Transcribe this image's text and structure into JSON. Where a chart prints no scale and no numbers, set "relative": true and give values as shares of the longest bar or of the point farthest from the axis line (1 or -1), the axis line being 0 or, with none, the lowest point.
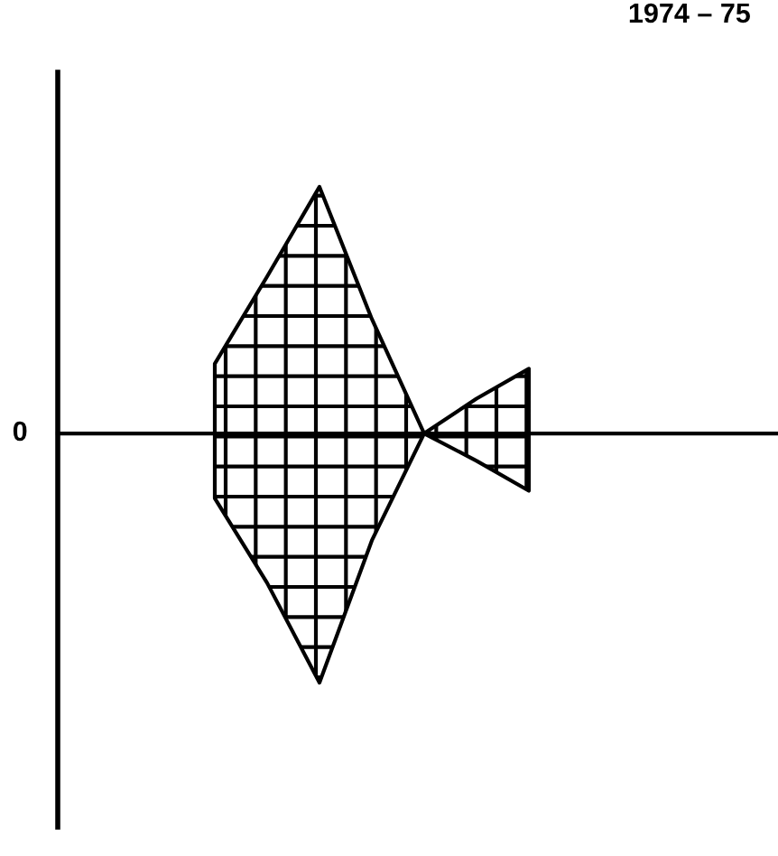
{
  "chart_data": {
    "type": "area",
    "title": "1974 – 75",
    "relative": true,
    "categories": [
      null,
      null,
      null,
      null,
      null,
      null,
      null,
      null,
      null,
      null,
      null,
      null,
      null,
      null
    ],
    "series": [
      {
        "color": "#000000",
        "values": [
          null,
          null,
          null,
          0.28,
          0.63,
          0.99,
          0.46,
          0,
          0.14,
          0.26,
          null,
          null,
          null,
          null
        ]
      },
      {
        "color": "#000000",
        "values": [
          null,
          null,
          null,
          -0.26,
          -0.6,
          -1,
          -0.43,
          0,
          -0.11,
          -0.23,
          null,
          null,
          null,
          null
        ]
      }
    ],
    "annotations": [
      "0"
    ],
    "grid": false,
    "legend": false
  }
}
